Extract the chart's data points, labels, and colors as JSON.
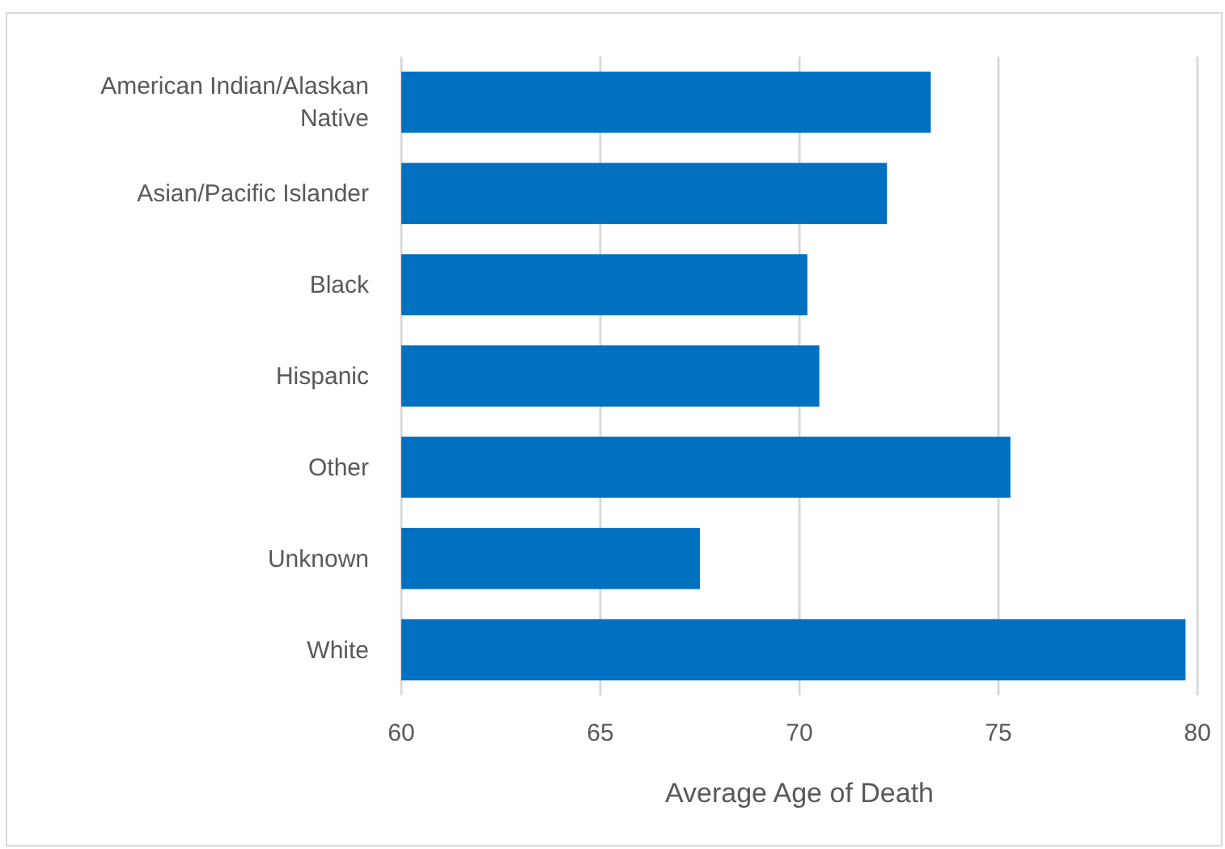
{
  "chart_data": {
    "type": "bar",
    "orientation": "horizontal",
    "categories": [
      "American Indian/Alaskan Native",
      "Asian/Pacific Islander",
      "Black",
      "Hispanic",
      "Other",
      "Unknown",
      "White"
    ],
    "values": [
      73.3,
      72.2,
      70.2,
      70.5,
      75.3,
      67.5,
      79.7
    ],
    "color": "#0070c0",
    "xlim": [
      60,
      80
    ],
    "xticks": [
      60,
      65,
      70,
      75,
      80
    ],
    "grid": "x",
    "xlabel": "Average Age of Death"
  }
}
